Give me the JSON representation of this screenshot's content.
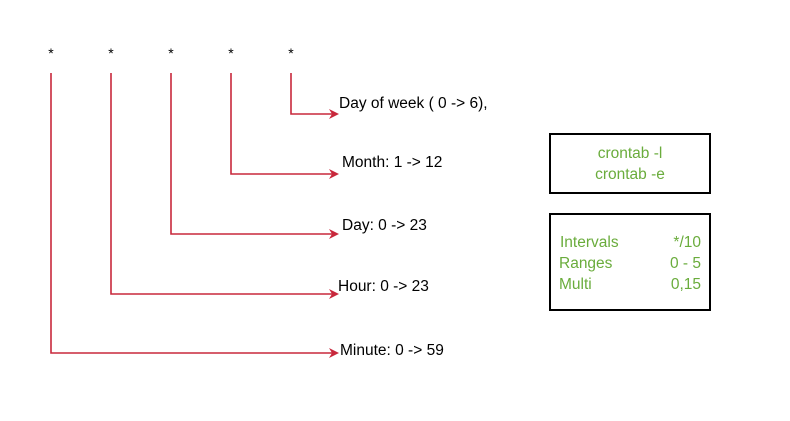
{
  "colors": {
    "arrow": "#c8283c",
    "box_border": "#000000",
    "box_text": "#6aac3c",
    "label_text": "#000000"
  },
  "cron_fields": [
    {
      "symbol": "*",
      "label": "Minute: 0 -> 59"
    },
    {
      "symbol": "*",
      "label": "Hour: 0 -> 23"
    },
    {
      "symbol": "*",
      "label": "Day: 0 -> 23"
    },
    {
      "symbol": "*",
      "label": "Month: 1 -> 12"
    },
    {
      "symbol": "*",
      "label": "Day of week ( 0 -> 6),"
    }
  ],
  "commands_box": {
    "lines": [
      "crontab -l",
      "crontab -e"
    ]
  },
  "syntax_box": {
    "rows": [
      {
        "name": "Intervals",
        "example": "*/10"
      },
      {
        "name": "Ranges",
        "example": "0 - 5"
      },
      {
        "name": "Multi",
        "example": "0,15"
      }
    ]
  }
}
